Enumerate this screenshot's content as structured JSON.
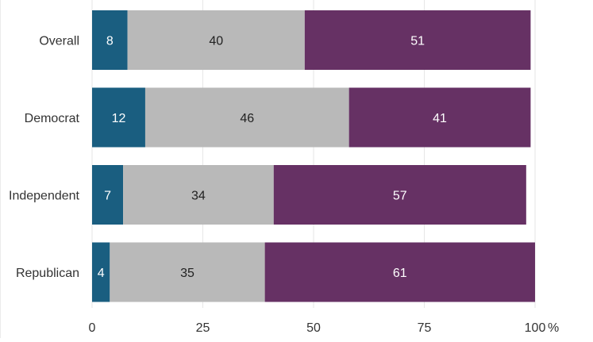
{
  "chart_data": {
    "type": "bar",
    "orientation": "horizontal",
    "stacked": true,
    "categories": [
      "Overall",
      "Democrat",
      "Independent",
      "Republican"
    ],
    "series": [
      {
        "color": "#1a5e80",
        "label_color": "#ffffff",
        "values": [
          8,
          12,
          7,
          4
        ]
      },
      {
        "color": "#b9b9b9",
        "label_color": "#222222",
        "values": [
          40,
          46,
          34,
          35
        ]
      },
      {
        "color": "#663164",
        "label_color": "#ffffff",
        "values": [
          51,
          41,
          57,
          61
        ]
      }
    ],
    "xlim": [
      0,
      100
    ],
    "xticks": [
      {
        "value": 0,
        "label": "0"
      },
      {
        "value": 25,
        "label": "25"
      },
      {
        "value": 50,
        "label": "50"
      },
      {
        "value": 75,
        "label": "75"
      },
      {
        "value": 100,
        "label": "100"
      }
    ],
    "x_unit": "%",
    "grid": true,
    "title": "",
    "xlabel": "",
    "ylabel": ""
  }
}
